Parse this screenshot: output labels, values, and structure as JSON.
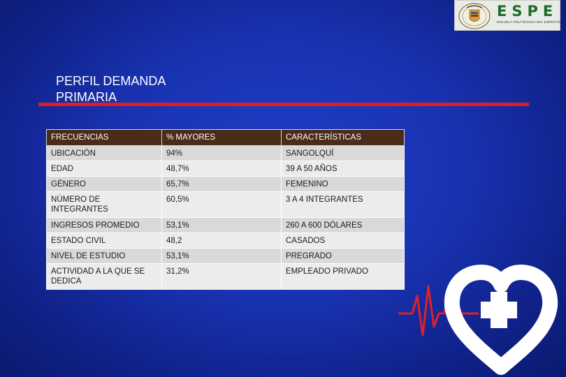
{
  "logo": {
    "title": "ESPE",
    "subtitle": "ESCUELA POLITÉCNICA DEL EJÉRCITO"
  },
  "page": {
    "title_line1": "PERFIL DEMANDA",
    "title_line2": "PRIMARIA"
  },
  "table": {
    "headers": [
      "FRECUENCIAS",
      "% MAYORES",
      "CARACTERÍSTICAS"
    ],
    "rows": [
      {
        "frecuencia": "UBICACIÓN",
        "mayores": "94%",
        "caracteristica": "SANGOLQUÍ"
      },
      {
        "frecuencia": "EDAD",
        "mayores": "48,7%",
        "caracteristica": "39 A 50 AÑOS"
      },
      {
        "frecuencia": "GÉNERO",
        "mayores": "65,7%",
        "caracteristica": "FEMENINO"
      },
      {
        "frecuencia": "NÚMERO DE INTEGRANTES",
        "mayores": "60,5%",
        "caracteristica": "3 A 4 INTEGRANTES"
      },
      {
        "frecuencia": "INGRESOS PROMEDIO",
        "mayores": "53,1%",
        "caracteristica": "260 A 600 DÓLARES"
      },
      {
        "frecuencia": "ESTADO CIVIL",
        "mayores": "48,2",
        "caracteristica": "CASADOS"
      },
      {
        "frecuencia": "NIVEL DE ESTUDIO",
        "mayores": "53,1%",
        "caracteristica": "PREGRADO"
      },
      {
        "frecuencia": "ACTIVIDAD A LA QUE SE DEDICA",
        "mayores": "31,2%",
        "caracteristica": "EMPLEADO PRIVADO"
      }
    ]
  },
  "colors": {
    "background": "#1832b0",
    "accent_rule": "#e01c24",
    "table_header": "#4a2c18",
    "logo_green": "#1f6b2e"
  },
  "icons": {
    "logo_seal": "university-seal-icon",
    "decoration": "heart-with-cross-ecg-icon"
  }
}
